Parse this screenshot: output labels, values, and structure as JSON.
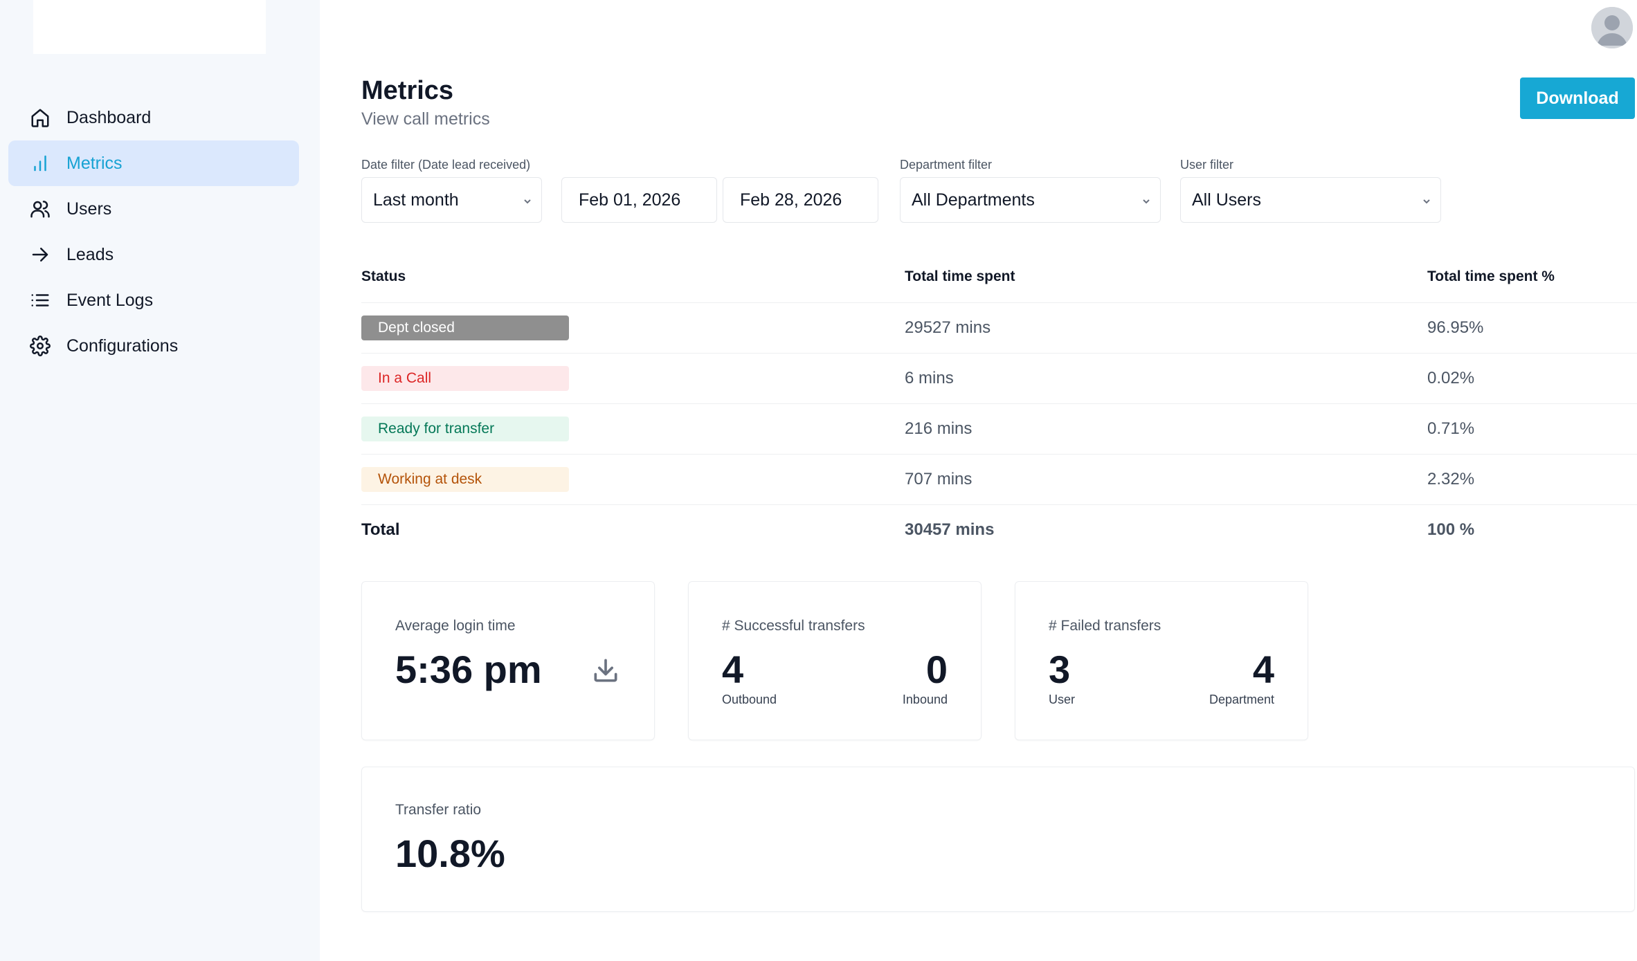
{
  "sidebar": {
    "items": [
      {
        "label": "Dashboard",
        "icon": "home-icon",
        "active": false
      },
      {
        "label": "Metrics",
        "icon": "bar-chart-icon",
        "active": true
      },
      {
        "label": "Users",
        "icon": "users-icon",
        "active": false
      },
      {
        "label": "Leads",
        "icon": "arrow-right-icon",
        "active": false
      },
      {
        "label": "Event Logs",
        "icon": "list-icon",
        "active": false
      },
      {
        "label": "Configurations",
        "icon": "gear-icon",
        "active": false
      }
    ]
  },
  "header": {
    "title": "Metrics",
    "subtitle": "View call metrics",
    "download_label": "Download"
  },
  "filters": {
    "date_label": "Date filter (Date lead received)",
    "date_range": "Last month",
    "start_date": "Feb 01, 2026",
    "end_date": "Feb 28, 2026",
    "department_label": "Department filter",
    "department": "All Departments",
    "user_label": "User filter",
    "user": "All Users"
  },
  "table": {
    "headers": [
      "Status",
      "Total time spent",
      "Total time spent %"
    ],
    "rows": [
      {
        "status": "Dept closed",
        "time": "29527 mins",
        "percent": "96.95%"
      },
      {
        "status": "In a Call",
        "time": "6 mins",
        "percent": "0.02%"
      },
      {
        "status": "Ready for transfer",
        "time": "216 mins",
        "percent": "0.71%"
      },
      {
        "status": "Working at desk",
        "time": "707 mins",
        "percent": "2.32%"
      }
    ],
    "total": {
      "label": "Total",
      "time": "30457 mins",
      "percent": "100 %"
    }
  },
  "cards": {
    "login": {
      "title": "Average login time",
      "value": "5:36 pm"
    },
    "successful": {
      "title": "# Successful transfers",
      "outbound": "4",
      "outbound_label": "Outbound",
      "inbound": "0",
      "inbound_label": "Inbound"
    },
    "failed": {
      "title": "# Failed transfers",
      "user": "3",
      "user_label": "User",
      "department": "4",
      "department_label": "Department"
    },
    "ratio": {
      "title": "Transfer ratio",
      "value": "10.8%"
    }
  },
  "colors": {
    "accent": "#17a8d4",
    "badge_dept_closed_bg": "#8f8f8f",
    "badge_in_call_bg": "#fde8ea",
    "badge_ready_bg": "#e6f7ef",
    "badge_working_bg": "#fdf3e4"
  }
}
